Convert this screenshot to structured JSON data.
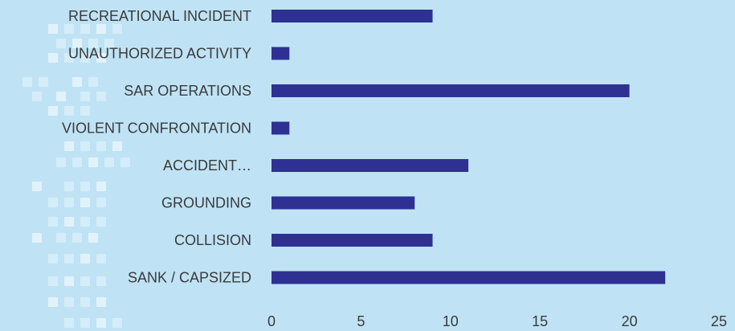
{
  "chart_data": {
    "type": "bar",
    "orientation": "horizontal",
    "title": "",
    "xlabel": "",
    "ylabel": "",
    "categories": [
      "RECREATIONAL INCIDENT",
      "UNAUTHORIZED ACTIVITY",
      "SAR OPERATIONS",
      "VIOLENT CONFRONTATION",
      "ACCIDENT…",
      "GROUNDING",
      "COLLISION",
      "SANK / CAPSIZED"
    ],
    "values": [
      9,
      1,
      20,
      1,
      11,
      8,
      9,
      22
    ],
    "xlim": [
      0,
      25
    ],
    "xticks": [
      "0",
      "5",
      "10",
      "15",
      "20",
      "25"
    ],
    "grid": false,
    "legend": "none",
    "colors": {
      "bar": "#2e3192",
      "background": "#bfe3f5",
      "text": "#3a3a3a"
    }
  }
}
